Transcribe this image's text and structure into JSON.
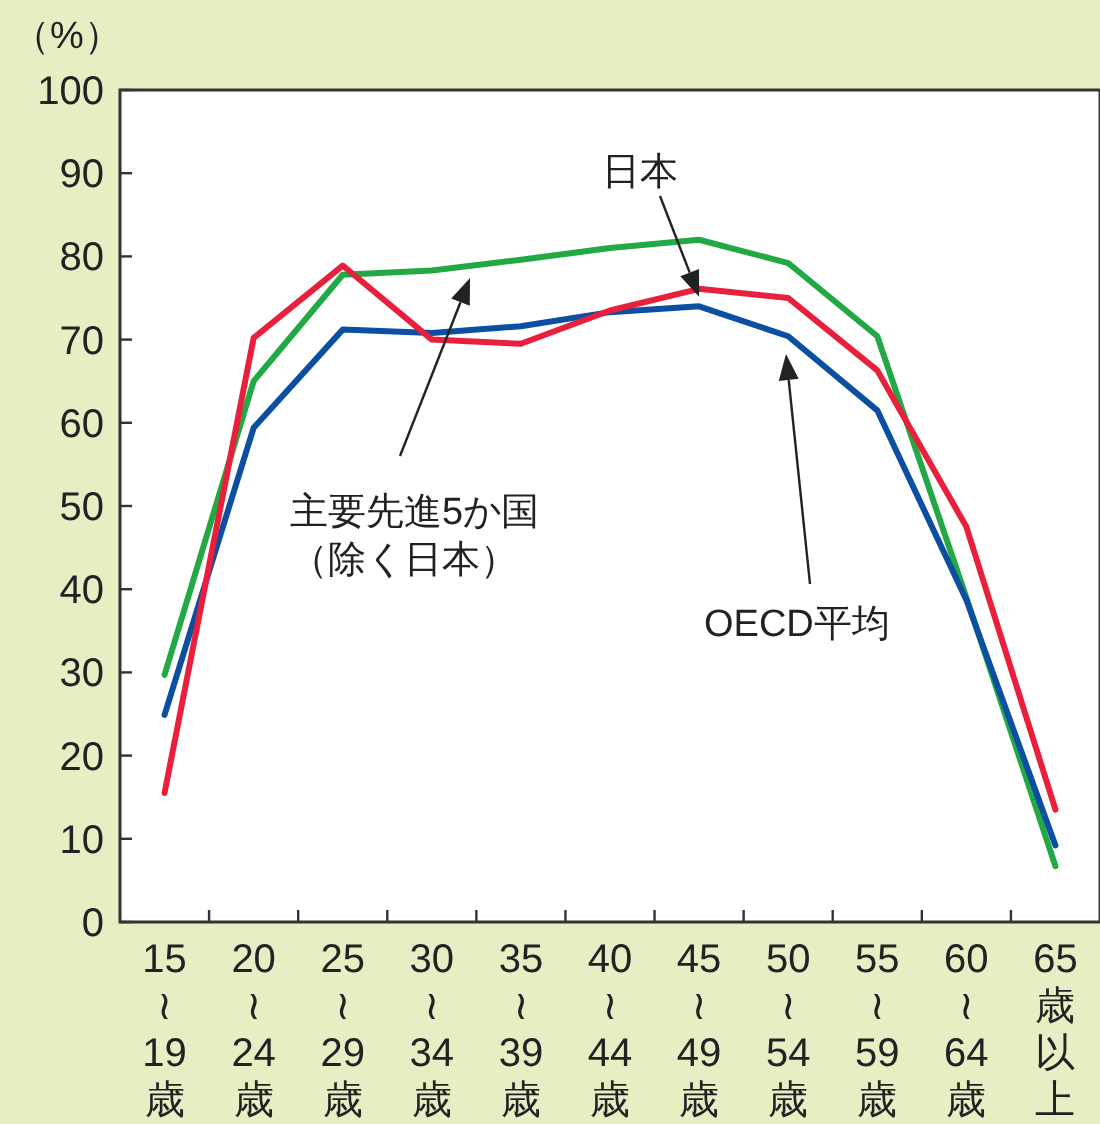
{
  "chart_data": {
    "type": "line",
    "ylabel": "（%）",
    "categories": [
      "15≀19歳",
      "20≀24歳",
      "25≀29歳",
      "30≀34歳",
      "35≀39歳",
      "40≀44歳",
      "45≀49歳",
      "50≀54歳",
      "55≀59歳",
      "60≀64歳",
      "65歳以上"
    ],
    "series": [
      {
        "color": "#22a845",
        "values": [
          29.7,
          65,
          77.8,
          78.3,
          79.6,
          81,
          82,
          79.2,
          70.4,
          39,
          6.7
        ]
      },
      {
        "color": "#0b4ea2",
        "values": [
          24.9,
          59.4,
          71.2,
          70.8,
          71.6,
          73.3,
          74,
          70.4,
          61.5,
          38.7,
          9.2
        ]
      },
      {
        "color": "#e8203c",
        "values": [
          15.5,
          70.2,
          78.9,
          70,
          69.5,
          73.5,
          76.1,
          75,
          66.3,
          47.5,
          13.5
        ]
      }
    ],
    "ylim": [
      0,
      100
    ],
    "yticks": [
      0,
      10,
      20,
      30,
      40,
      50,
      60,
      70,
      80,
      90,
      100
    ],
    "grid": false,
    "marker": "none",
    "line_style": "solid",
    "annotations": [
      {
        "text": "日本",
        "x": "45≀49歳",
        "y": 76.1
      },
      "主要先進5か国（除く日本）",
      "OECD平均"
    ]
  }
}
